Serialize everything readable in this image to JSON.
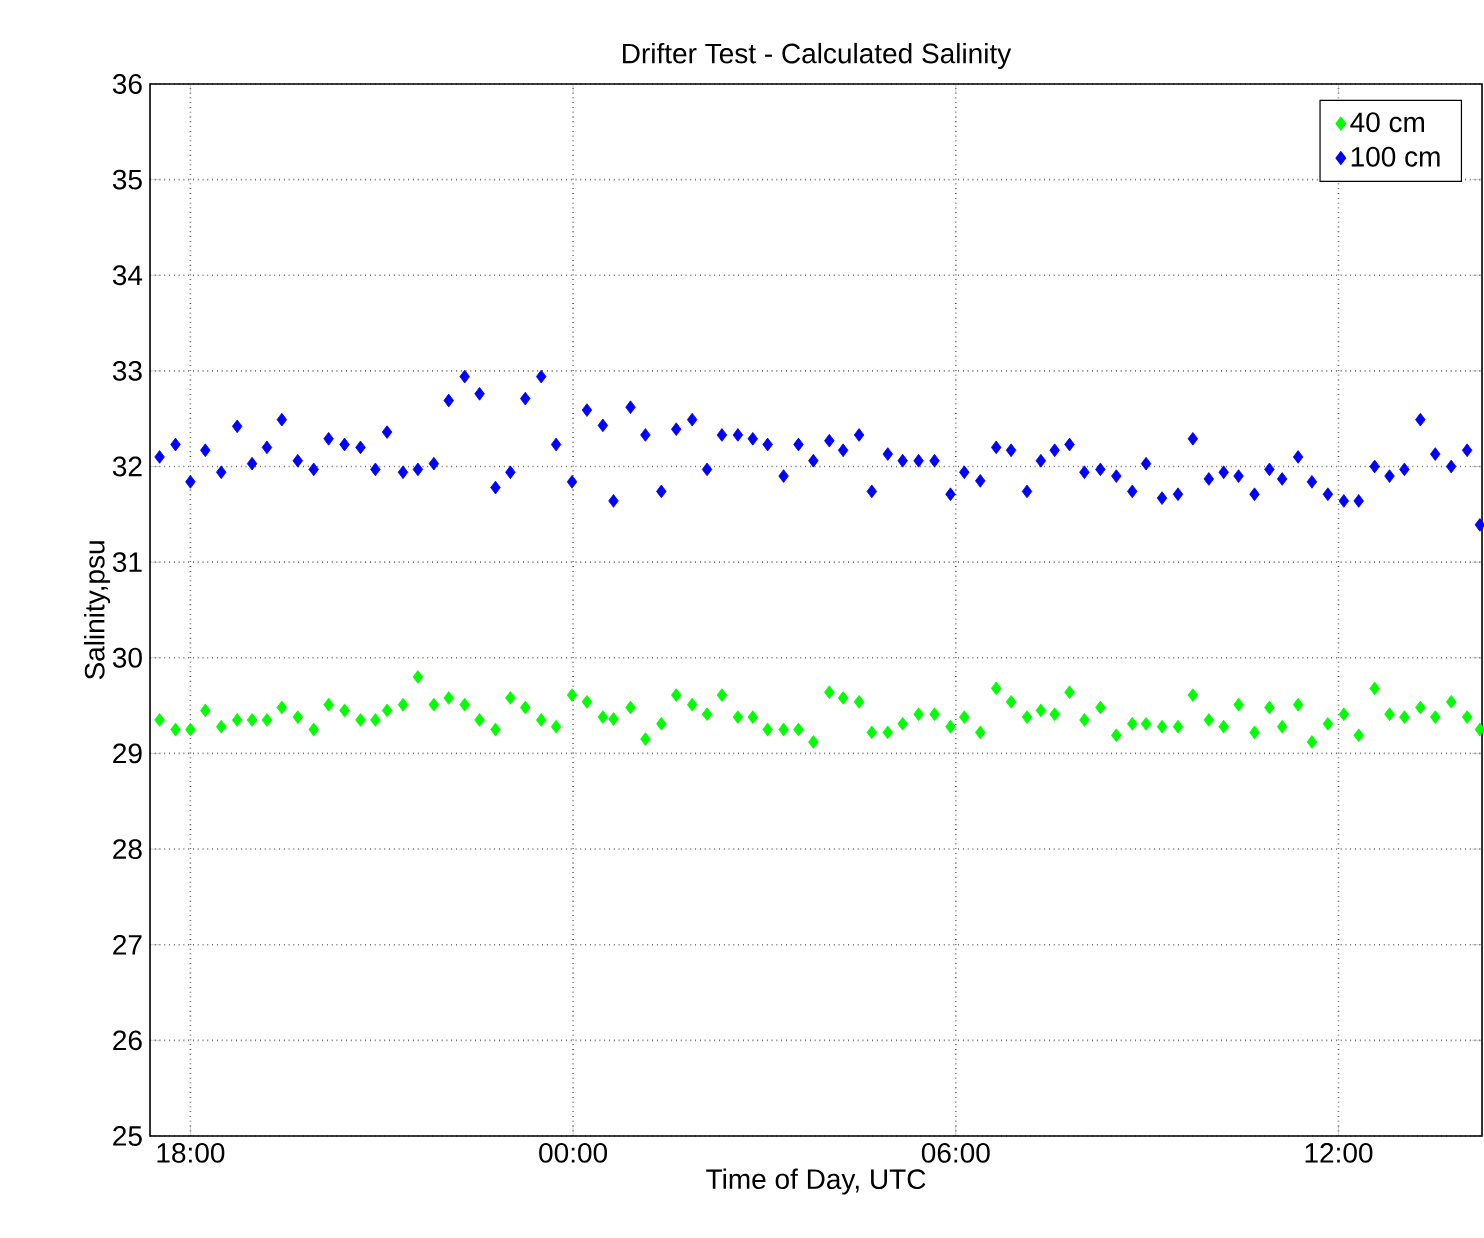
{
  "chart_data": {
    "type": "scatter",
    "title": "Drifter Test - Calculated Salinity",
    "xlabel": "Time of Day, UTC",
    "ylabel": "Salinity,psu",
    "x": [
      "2000-01-01T17:31",
      "2000-01-01T17:46",
      "2000-01-01T18:00",
      "2000-01-01T18:14",
      "2000-01-01T18:29",
      "2000-01-01T18:44",
      "2000-01-01T18:58",
      "2000-01-01T19:12",
      "2000-01-01T19:26",
      "2000-01-01T19:41",
      "2000-01-01T19:56",
      "2000-01-01T20:10",
      "2000-01-01T20:25",
      "2000-01-01T20:40",
      "2000-01-01T20:54",
      "2000-01-01T21:05",
      "2000-01-01T21:20",
      "2000-01-01T21:34",
      "2000-01-01T21:49",
      "2000-01-01T22:03",
      "2000-01-01T22:18",
      "2000-01-01T22:32",
      "2000-01-01T22:47",
      "2000-01-01T23:01",
      "2000-01-01T23:15",
      "2000-01-01T23:30",
      "2000-01-01T23:44",
      "2000-01-01T23:59",
      "2000-01-02T00:13",
      "2000-01-02T00:28",
      "2000-01-02T00:38",
      "2000-01-02T00:54",
      "2000-01-02T01:08",
      "2000-01-02T01:23",
      "2000-01-02T01:37",
      "2000-01-02T01:52",
      "2000-01-02T02:06",
      "2000-01-02T02:20",
      "2000-01-02T02:35",
      "2000-01-02T02:49",
      "2000-01-02T03:03",
      "2000-01-02T03:18",
      "2000-01-02T03:32",
      "2000-01-02T03:46",
      "2000-01-02T04:01",
      "2000-01-02T04:14",
      "2000-01-02T04:29",
      "2000-01-02T04:41",
      "2000-01-02T04:56",
      "2000-01-02T05:10",
      "2000-01-02T05:25",
      "2000-01-02T05:40",
      "2000-01-02T05:55",
      "2000-01-02T06:08",
      "2000-01-02T06:23",
      "2000-01-02T06:38",
      "2000-01-02T06:52",
      "2000-01-02T07:07",
      "2000-01-02T07:20",
      "2000-01-02T07:33",
      "2000-01-02T07:47",
      "2000-01-02T08:01",
      "2000-01-02T08:16",
      "2000-01-02T08:31",
      "2000-01-02T08:46",
      "2000-01-02T08:59",
      "2000-01-02T09:14",
      "2000-01-02T09:29",
      "2000-01-02T09:43",
      "2000-01-02T09:58",
      "2000-01-02T10:12",
      "2000-01-02T10:26",
      "2000-01-02T10:41",
      "2000-01-02T10:55",
      "2000-01-02T11:07",
      "2000-01-02T11:22",
      "2000-01-02T11:35",
      "2000-01-02T11:50",
      "2000-01-02T12:05",
      "2000-01-02T12:19",
      "2000-01-02T12:34",
      "2000-01-02T12:48",
      "2000-01-02T13:02",
      "2000-01-02T13:17",
      "2000-01-02T13:31",
      "2000-01-02T13:46",
      "2000-01-02T14:01",
      "2000-01-02T14:13"
    ],
    "series": [
      {
        "name": "40 cm",
        "color": "#00ff00",
        "values": [
          29.35,
          29.25,
          29.25,
          29.45,
          29.28,
          29.35,
          29.35,
          29.35,
          29.48,
          29.38,
          29.25,
          29.51,
          29.45,
          29.35,
          29.35,
          29.45,
          29.51,
          29.8,
          29.51,
          29.58,
          29.51,
          29.35,
          29.25,
          29.58,
          29.48,
          29.35,
          29.28,
          29.61,
          29.54,
          29.38,
          29.36,
          29.48,
          29.15,
          29.31,
          29.61,
          29.51,
          29.41,
          29.61,
          29.38,
          29.38,
          29.25,
          29.25,
          29.25,
          29.12,
          29.64,
          29.58,
          29.54,
          29.22,
          29.22,
          29.31,
          29.41,
          29.41,
          29.28,
          29.38,
          29.22,
          29.68,
          29.54,
          29.38,
          29.45,
          29.41,
          29.64,
          29.35,
          29.48,
          29.19,
          29.31,
          29.31,
          29.28,
          29.28,
          29.61,
          29.35,
          29.28,
          29.51,
          29.22,
          29.48,
          29.28,
          29.51,
          29.12,
          29.31,
          29.41,
          29.19,
          29.68,
          29.41,
          29.38,
          29.48,
          29.38,
          29.54,
          29.38,
          29.25
        ]
      },
      {
        "name": "100 cm",
        "color": "#0000ff",
        "values": [
          32.1,
          32.23,
          31.84,
          32.17,
          31.94,
          32.42,
          32.03,
          32.2,
          32.49,
          32.06,
          31.97,
          32.29,
          32.23,
          32.2,
          31.97,
          32.36,
          31.94,
          31.97,
          32.03,
          32.69,
          32.94,
          32.76,
          31.78,
          31.94,
          32.71,
          32.94,
          32.23,
          31.84,
          32.59,
          32.43,
          31.64,
          32.62,
          32.33,
          31.74,
          32.39,
          32.49,
          31.97,
          32.33,
          32.33,
          32.29,
          32.23,
          31.9,
          32.23,
          32.06,
          32.27,
          32.17,
          32.33,
          31.74,
          32.13,
          32.06,
          32.06,
          32.06,
          31.71,
          31.94,
          31.85,
          32.2,
          32.17,
          31.74,
          32.06,
          32.17,
          32.23,
          31.94,
          31.97,
          31.9,
          31.74,
          32.03,
          31.67,
          31.71,
          32.29,
          31.87,
          31.94,
          31.9,
          31.71,
          31.97,
          31.87,
          32.1,
          31.84,
          31.71,
          31.64,
          31.64,
          32.0,
          31.9,
          31.97,
          32.49,
          32.13,
          32.0,
          32.17,
          31.39
        ]
      }
    ],
    "xlim": [
      "2000-01-01T17:22",
      "2000-01-02T14:15"
    ],
    "xticks": [
      {
        "value": "2000-01-01T18:00",
        "label": "18:00"
      },
      {
        "value": "2000-01-02T00:00",
        "label": "00:00"
      },
      {
        "value": "2000-01-02T06:00",
        "label": "06:00"
      },
      {
        "value": "2000-01-02T12:00",
        "label": "12:00"
      }
    ],
    "ylim": [
      25,
      36
    ],
    "yticks": [
      25,
      26,
      27,
      28,
      29,
      30,
      31,
      32,
      33,
      34,
      35,
      36
    ],
    "grid": true,
    "legend": "top right",
    "marker": "diamond"
  }
}
